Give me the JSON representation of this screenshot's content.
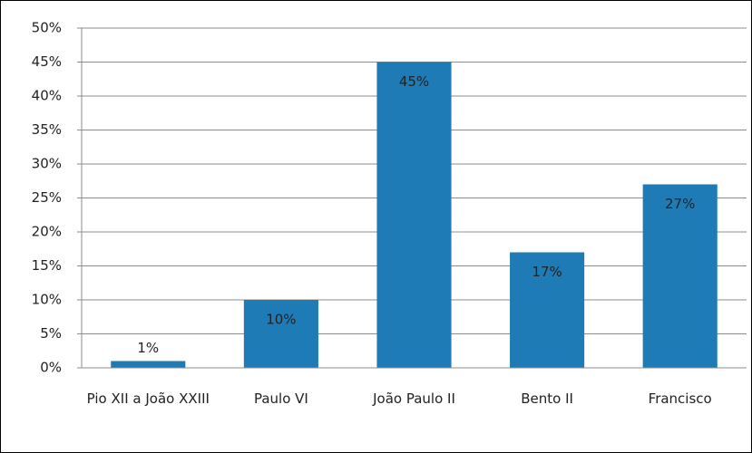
{
  "chart_data": {
    "type": "bar",
    "categories": [
      "Pio XII a João XXIII",
      "Paulo VI",
      "João Paulo II",
      "Bento II",
      "Francisco"
    ],
    "values": [
      1,
      10,
      45,
      17,
      27
    ],
    "value_labels": [
      "1%",
      "10%",
      "45%",
      "17%",
      "27%"
    ],
    "color": "#1f7bb5",
    "ylim": [
      0,
      50
    ],
    "yticks": [
      {
        "value": 0,
        "label": "0%"
      },
      {
        "value": 5,
        "label": "5%"
      },
      {
        "value": 10,
        "label": "10%"
      },
      {
        "value": 15,
        "label": "15%"
      },
      {
        "value": 20,
        "label": "20%"
      },
      {
        "value": 25,
        "label": "25%"
      },
      {
        "value": 30,
        "label": "30%"
      },
      {
        "value": 35,
        "label": "35%"
      },
      {
        "value": 40,
        "label": "40%"
      },
      {
        "value": 45,
        "label": "45%"
      },
      {
        "value": 50,
        "label": "50%"
      }
    ],
    "grid": true
  }
}
